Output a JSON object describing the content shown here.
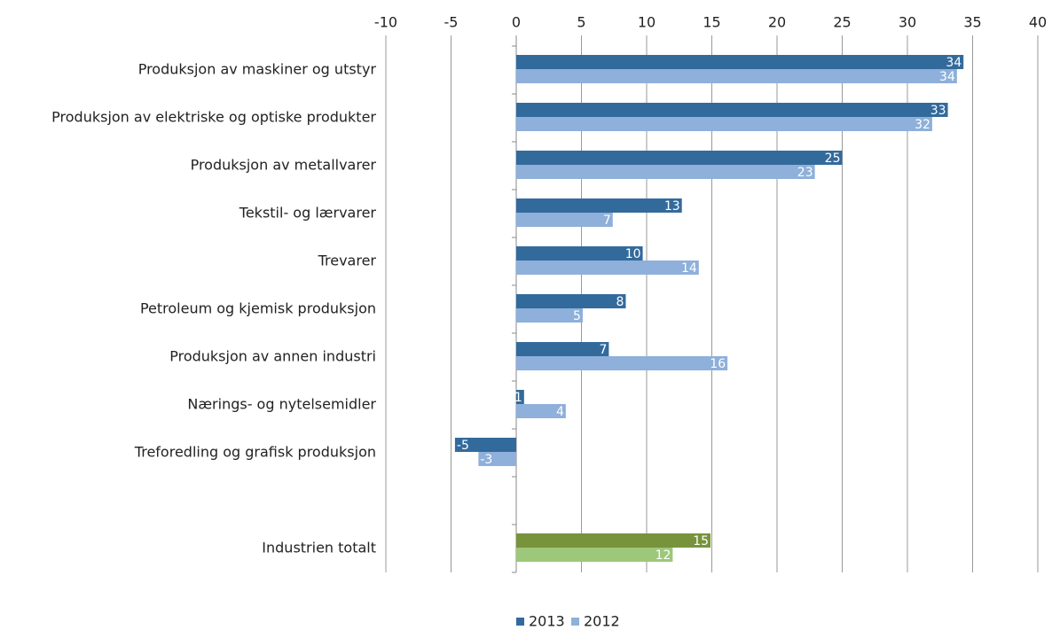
{
  "chart_data": {
    "type": "bar",
    "orientation": "horizontal",
    "categories": [
      "Produksjon av maskiner og utstyr",
      "Produksjon av elektriske og optiske produkter",
      "Produksjon av metallvarer",
      "Tekstil- og lærvarer",
      "Trevarer",
      "Petroleum og kjemisk produksjon",
      "Produksjon av annen industri",
      "Nærings- og nytelsemidler",
      "Treforedling og grafisk produksjon",
      null,
      "Industrien totalt"
    ],
    "series": [
      {
        "name": "2013",
        "color": "#336a9c",
        "colors": [
          "#336a9c",
          "#336a9c",
          "#336a9c",
          "#336a9c",
          "#336a9c",
          "#336a9c",
          "#336a9c",
          "#336a9c",
          "#336a9c",
          null,
          "#77933c"
        ],
        "values": [
          34.3,
          33.1,
          25.0,
          12.7,
          9.7,
          8.4,
          7.1,
          0.6,
          -4.7,
          null,
          14.9
        ],
        "value_labels": [
          "34",
          "33",
          "25",
          "13",
          "10",
          "8",
          "7",
          "1",
          "-5",
          null,
          "15"
        ]
      },
      {
        "name": "2012",
        "color": "#8eb0da",
        "colors": [
          "#8eb0da",
          "#8eb0da",
          "#8eb0da",
          "#8eb0da",
          "#8eb0da",
          "#8eb0da",
          "#8eb0da",
          "#8eb0da",
          "#8eb0da",
          null,
          "#9dc779"
        ],
        "values": [
          33.8,
          31.9,
          22.9,
          7.4,
          14.0,
          5.1,
          16.2,
          3.8,
          -2.9,
          null,
          12.0
        ],
        "value_labels": [
          "34",
          "32",
          "23",
          "7",
          "14",
          "5",
          "16",
          "4",
          "-3",
          null,
          "12"
        ]
      }
    ],
    "xlim": [
      -10,
      40
    ],
    "xticks": [
      -10,
      -5,
      0,
      5,
      10,
      15,
      20,
      25,
      30,
      35,
      40
    ],
    "grid": true,
    "legend": "bottom"
  }
}
